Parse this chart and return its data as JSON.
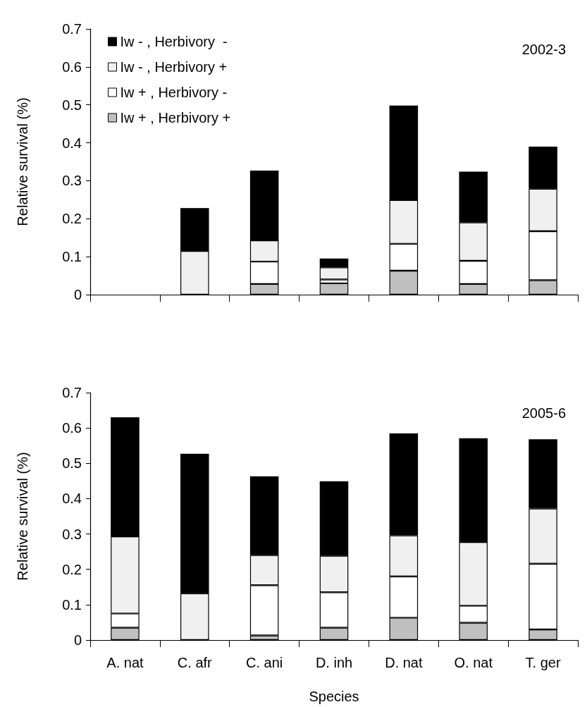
{
  "chart_data": [
    {
      "type": "bar",
      "title": "2002-3",
      "ylabel": "Relative survival (%)",
      "categories": [
        null,
        null,
        null,
        null,
        null,
        null,
        null
      ],
      "stacked": true,
      "ylim": [
        0,
        0.7
      ],
      "yticks": [
        0,
        0.1,
        0.2,
        0.3,
        0.4,
        0.5,
        0.6,
        0.7
      ],
      "tick_labels": "y",
      "grid": false,
      "legend": "top left",
      "series": [
        {
          "name": "Iw + , Herbivory +",
          "color": "#c0c0c0",
          "values": [
            null,
            0,
            0.028,
            0.03,
            0.063,
            0.028,
            0.038
          ]
        },
        {
          "name": "Iw + , Herbivory -",
          "color": "#ffffff",
          "values": [
            null,
            0,
            0.059,
            0.01,
            0.071,
            0.061,
            0.129
          ]
        },
        {
          "name": "Iw - , Herbivory +",
          "color": "#f0f0f0",
          "values": [
            null,
            0.115,
            0.056,
            0.032,
            0.115,
            0.101,
            0.112
          ]
        },
        {
          "name": "Iw - , Herbivory  -",
          "color": "#000000",
          "values": [
            null,
            0.113,
            0.184,
            0.023,
            0.249,
            0.134,
            0.111
          ]
        }
      ]
    },
    {
      "type": "bar",
      "title": "2005-6",
      "ylabel": "Relative survival (%)",
      "xlabel": "Species",
      "categories": [
        "A. nat",
        "C. afr",
        "C. ani",
        "D. inh",
        "D. nat",
        "O. nat",
        "T. ger"
      ],
      "stacked": true,
      "ylim": [
        0,
        0.7
      ],
      "yticks": [
        0,
        0.1,
        0.2,
        0.3,
        0.4,
        0.5,
        0.6,
        0.7
      ],
      "grid": false,
      "legend": false,
      "series": [
        {
          "color": "#c0c0c0",
          "values": [
            0.035,
            0,
            0.013,
            0.035,
            0.063,
            0.049,
            0.03
          ]
        },
        {
          "color": "#ffffff",
          "values": [
            0.04,
            0,
            0.142,
            0.1,
            0.117,
            0.048,
            0.186
          ]
        },
        {
          "color": "#f0f0f0",
          "values": [
            0.218,
            0.132,
            0.085,
            0.103,
            0.116,
            0.18,
            0.156
          ]
        },
        {
          "color": "#000000",
          "values": [
            0.337,
            0.395,
            0.223,
            0.211,
            0.289,
            0.294,
            0.196
          ]
        }
      ]
    }
  ]
}
